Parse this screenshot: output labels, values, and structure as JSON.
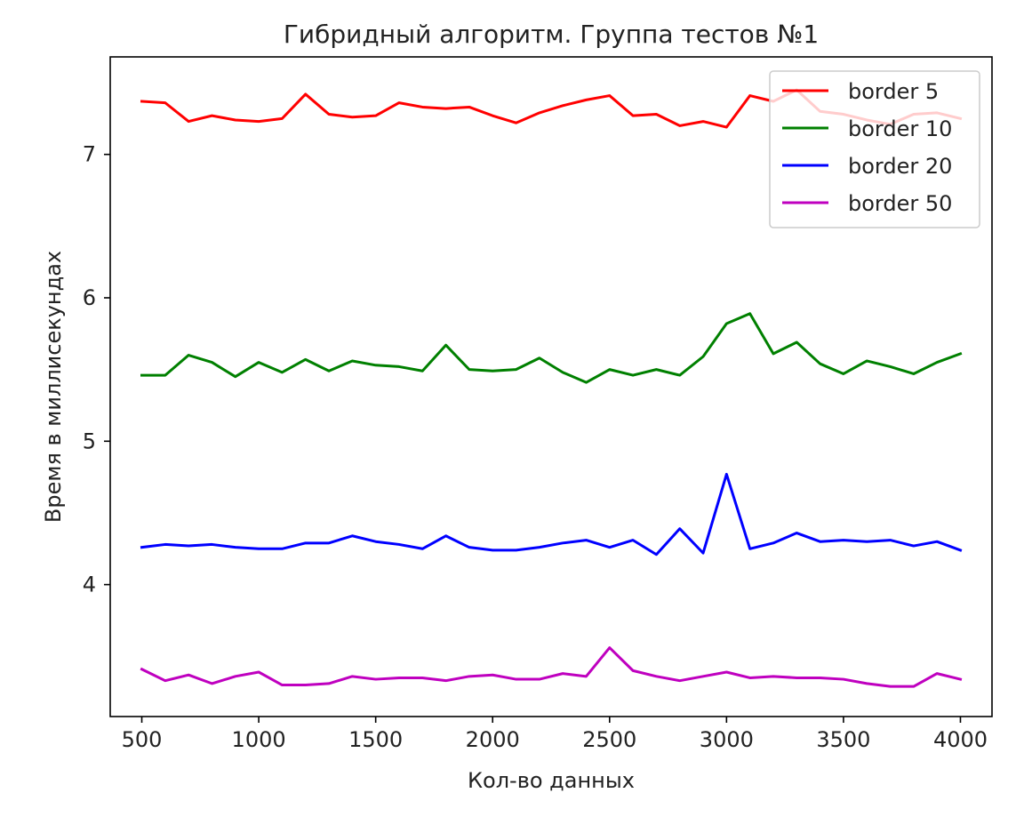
{
  "chart_data": {
    "type": "line",
    "title": "Гибридный алгоритм. Группа тестов №1",
    "xlabel": "Кол-во данных",
    "ylabel": "Время в миллисекундах",
    "xlim": [
      365,
      4135
    ],
    "ylim": [
      3.08,
      7.68
    ],
    "xticks": [
      500,
      1000,
      1500,
      2000,
      2500,
      3000,
      3500,
      4000
    ],
    "yticks": [
      4,
      5,
      6,
      7
    ],
    "grid": false,
    "legend_position": "top-right",
    "x": [
      500,
      600,
      700,
      800,
      900,
      1000,
      1100,
      1200,
      1300,
      1400,
      1500,
      1600,
      1700,
      1800,
      1900,
      2000,
      2100,
      2200,
      2300,
      2400,
      2500,
      2600,
      2700,
      2800,
      2900,
      3000,
      3100,
      3200,
      3300,
      3400,
      3500,
      3600,
      3700,
      3800,
      3900,
      4000
    ],
    "series": [
      {
        "name": "border 5",
        "color": "#ff0000",
        "values": [
          7.37,
          7.36,
          7.23,
          7.27,
          7.24,
          7.23,
          7.25,
          7.42,
          7.28,
          7.26,
          7.27,
          7.36,
          7.33,
          7.32,
          7.33,
          7.27,
          7.22,
          7.29,
          7.34,
          7.38,
          7.41,
          7.27,
          7.28,
          7.2,
          7.23,
          7.19,
          7.41,
          7.37,
          7.45,
          7.3,
          7.28,
          7.24,
          7.21,
          7.28,
          7.29,
          7.25
        ]
      },
      {
        "name": "border 10",
        "color": "#008000",
        "values": [
          5.46,
          5.46,
          5.6,
          5.55,
          5.45,
          5.55,
          5.48,
          5.57,
          5.49,
          5.56,
          5.53,
          5.52,
          5.49,
          5.67,
          5.5,
          5.49,
          5.5,
          5.58,
          5.48,
          5.41,
          5.5,
          5.46,
          5.5,
          5.46,
          5.59,
          5.82,
          5.89,
          5.61,
          5.69,
          5.54,
          5.47,
          5.56,
          5.52,
          5.47,
          5.55,
          5.61
        ]
      },
      {
        "name": "border 20",
        "color": "#0000ff",
        "values": [
          4.26,
          4.28,
          4.27,
          4.28,
          4.26,
          4.25,
          4.25,
          4.29,
          4.29,
          4.34,
          4.3,
          4.28,
          4.25,
          4.34,
          4.26,
          4.24,
          4.24,
          4.26,
          4.29,
          4.31,
          4.26,
          4.31,
          4.21,
          4.39,
          4.22,
          4.77,
          4.25,
          4.29,
          4.36,
          4.3,
          4.31,
          4.3,
          4.31,
          4.27,
          4.3,
          4.24
        ]
      },
      {
        "name": "border 50",
        "color": "#bf00bf",
        "values": [
          3.41,
          3.33,
          3.37,
          3.31,
          3.36,
          3.39,
          3.3,
          3.3,
          3.31,
          3.36,
          3.34,
          3.35,
          3.35,
          3.33,
          3.36,
          3.37,
          3.34,
          3.34,
          3.38,
          3.36,
          3.56,
          3.4,
          3.36,
          3.33,
          3.36,
          3.39,
          3.35,
          3.36,
          3.35,
          3.35,
          3.34,
          3.31,
          3.29,
          3.29,
          3.38,
          3.34
        ]
      }
    ]
  }
}
